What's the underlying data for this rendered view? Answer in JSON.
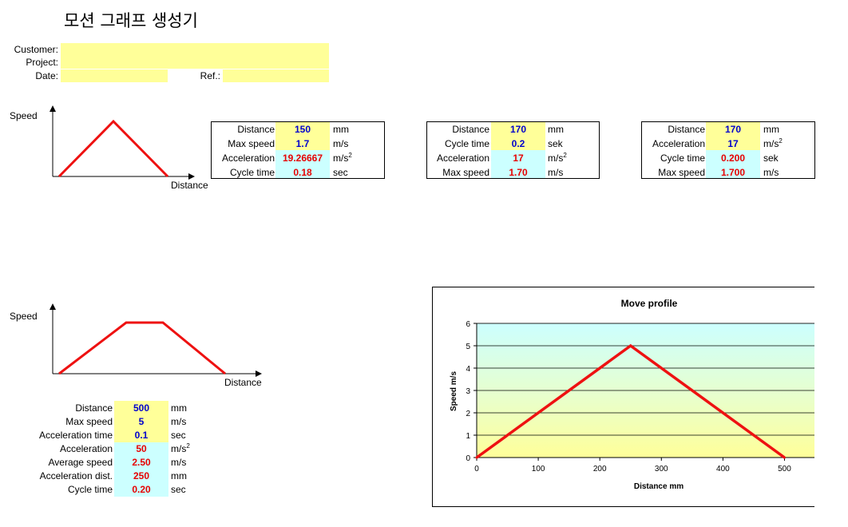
{
  "title": "모션 그래프 생성기",
  "header": {
    "customer_label": "Customer:",
    "project_label": "Project:",
    "date_label": "Date:",
    "ref_label": "Ref.:"
  },
  "diagram1": {
    "ylabel": "Speed",
    "xlabel": "Distance"
  },
  "diagram2": {
    "ylabel": "Speed",
    "xlabel": "Distance"
  },
  "calc1": {
    "rows": [
      {
        "label": "Distance",
        "value": "150",
        "unit": "mm"
      },
      {
        "label": "Max speed",
        "value": "1.7",
        "unit": "m/s"
      },
      {
        "label": "Acceleration",
        "value": "19.26667",
        "unit": "m/s",
        "sup": "2"
      },
      {
        "label": "Cycle time",
        "value": "0.18",
        "unit": "sec"
      }
    ]
  },
  "calc2": {
    "rows": [
      {
        "label": "Distance",
        "value": "170",
        "unit": "mm"
      },
      {
        "label": "Cycle time",
        "value": "0.2",
        "unit": "sek"
      },
      {
        "label": "Acceleration",
        "value": "17",
        "unit": "m/s",
        "sup": "2"
      },
      {
        "label": "Max speed",
        "value": "1.70",
        "unit": "m/s"
      }
    ]
  },
  "calc3": {
    "rows": [
      {
        "label": "Distance",
        "value": "170",
        "unit": "mm"
      },
      {
        "label": "Acceleration",
        "value": "17",
        "unit": "m/s",
        "sup": "2"
      },
      {
        "label": "Cycle time",
        "value": "0.200",
        "unit": "sek"
      },
      {
        "label": "Max speed",
        "value": "1.700",
        "unit": "m/s"
      }
    ]
  },
  "calc4": {
    "rows": [
      {
        "label": "Distance",
        "value": "500",
        "unit": "mm"
      },
      {
        "label": "Max speed",
        "value": "5",
        "unit": "m/s"
      },
      {
        "label": "Acceleration time",
        "value": "0.1",
        "unit": "sec"
      },
      {
        "label": "Acceleration",
        "value": "50",
        "unit": "m/s",
        "sup": "2"
      },
      {
        "label": "Average speed",
        "value": "2.50",
        "unit": "m/s"
      },
      {
        "label": "Acceleration dist.",
        "value": "250",
        "unit": "mm"
      },
      {
        "label": "Cycle time",
        "value": "0.20",
        "unit": "sec"
      }
    ]
  },
  "chart_data": {
    "type": "line",
    "title": "Move profile",
    "xlabel": "Distance mm",
    "ylabel": "Speed m/s",
    "xlim": [
      0,
      550
    ],
    "ylim": [
      0,
      6
    ],
    "xticks": [
      "0",
      "100",
      "200",
      "300",
      "400",
      "500"
    ],
    "yticks": [
      "0",
      "1",
      "2",
      "3",
      "4",
      "5",
      "6"
    ],
    "grid": true,
    "series": [
      {
        "x": [
          0,
          250,
          500
        ],
        "y": [
          0,
          5,
          0
        ],
        "color": "#ee1111"
      }
    ]
  }
}
